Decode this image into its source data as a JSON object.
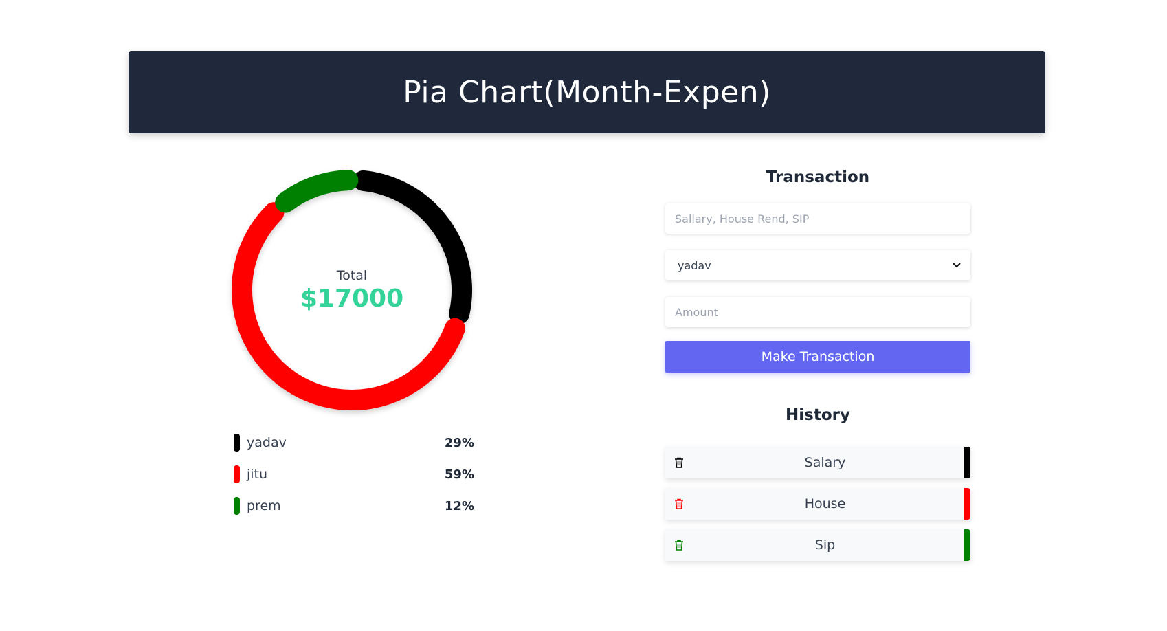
{
  "header": {
    "title": "Pia Chart(Month-Expen)"
  },
  "chart_data": {
    "type": "pie",
    "variant": "donut",
    "center_label": "Total",
    "center_value": "$17000",
    "categories": [
      "yadav",
      "jitu",
      "prem"
    ],
    "values": [
      29,
      59,
      12
    ],
    "colors": [
      "#000000",
      "#ff0000",
      "#008000"
    ]
  },
  "legend": [
    {
      "name": "yadav",
      "percent": "29%",
      "color": "#000000"
    },
    {
      "name": "jitu",
      "percent": "59%",
      "color": "#ff0000"
    },
    {
      "name": "prem",
      "percent": "12%",
      "color": "#008000"
    }
  ],
  "transaction": {
    "title": "Transaction",
    "name_placeholder": "Sallary, House Rend, SIP",
    "name_value": "",
    "category_selected": "yadav",
    "amount_placeholder": "Amount",
    "amount_value": "",
    "submit_label": "Make Transaction",
    "accent_color": "#6366f1"
  },
  "history": {
    "title": "History",
    "items": [
      {
        "label": "Salary",
        "color": "#000000",
        "icon": "trash-icon"
      },
      {
        "label": "House",
        "color": "#ff0000",
        "icon": "trash-icon"
      },
      {
        "label": "Sip",
        "color": "#008000",
        "icon": "trash-icon"
      }
    ]
  }
}
